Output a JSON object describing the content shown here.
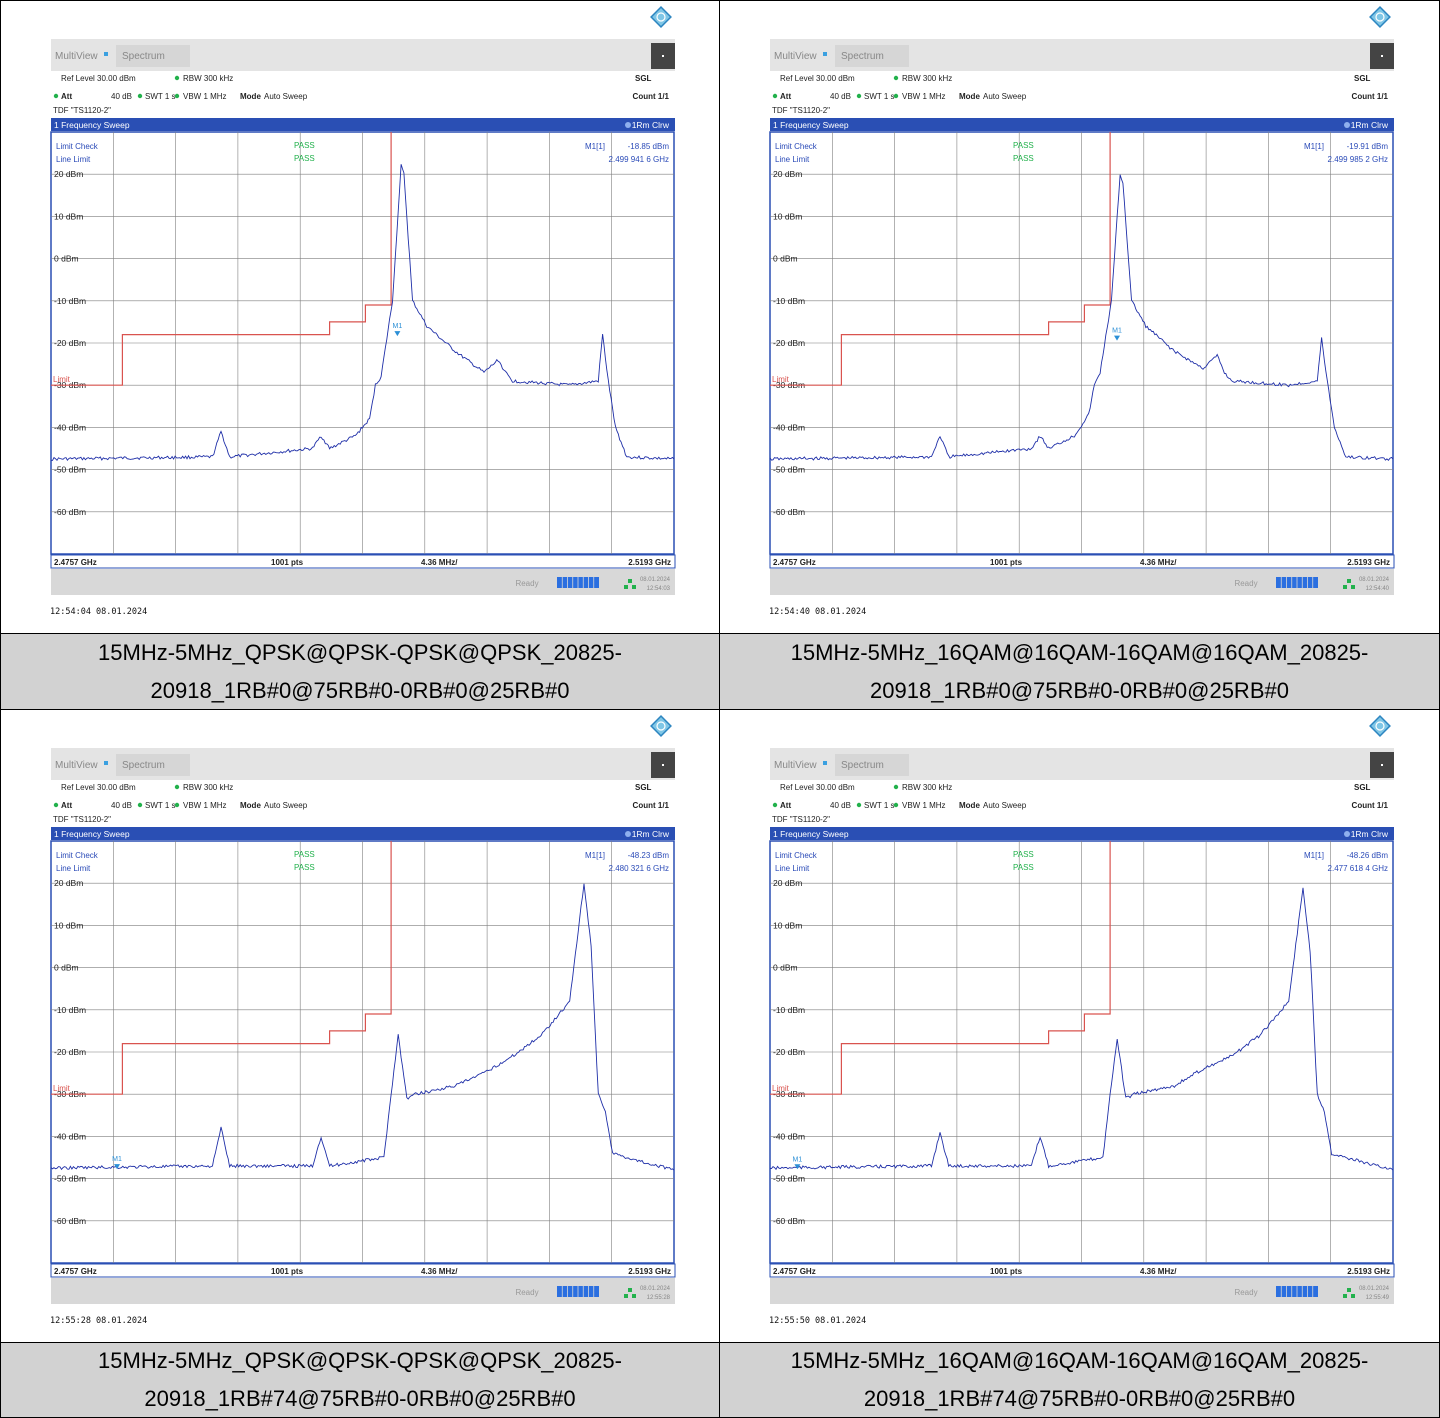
{
  "panels": [
    {
      "tab_multiview": "MultiView",
      "tab_spectrum": "Spectrum",
      "ref_level": "Ref Level 30.00 dBm",
      "att": "Att",
      "att_val": "40 dB",
      "swt": "SWT 1 s",
      "rbw": "RBW 300 kHz",
      "vbw": "VBW 1 MHz",
      "mode": "Mode",
      "mode_val": "Auto Sweep",
      "sgl": "SGL",
      "count": "Count 1/1",
      "tdf": "TDF \"TS1120-2\"",
      "window_title": "1 Frequency Sweep",
      "trace_label": "1Rm Clrw",
      "limit_check": "Limit Check",
      "line_limit": "Line Limit",
      "pass1": "PASS",
      "pass2": "PASS",
      "marker_label": "M1[1]",
      "marker_level": "-18.85 dBm",
      "marker_freq": "2.499 941 6 GHz",
      "marker_tag": "M1",
      "limit_tag": "Limit",
      "start_freq": "2.4757 GHz",
      "points": "1001 pts",
      "span_div": "4.36 MHz/",
      "stop_freq": "2.5193 GHz",
      "status_ready": "Ready",
      "status_date": "08.01.2024",
      "status_time": "12:54:03",
      "timestamp": "12:54:04  08.01.2024",
      "caption": "15MHz-5MHz_QPSK@QPSK-QPSK@QPSK_20825-20918_1RB#0@75RB#0-0RB#0@25RB#0"
    },
    {
      "tab_multiview": "MultiView",
      "tab_spectrum": "Spectrum",
      "ref_level": "Ref Level 30.00 dBm",
      "att": "Att",
      "att_val": "40 dB",
      "swt": "SWT 1 s",
      "rbw": "RBW 300 kHz",
      "vbw": "VBW 1 MHz",
      "mode": "Mode",
      "mode_val": "Auto Sweep",
      "sgl": "SGL",
      "count": "Count 1/1",
      "tdf": "TDF \"TS1120-2\"",
      "window_title": "1 Frequency Sweep",
      "trace_label": "1Rm Clrw",
      "limit_check": "Limit Check",
      "line_limit": "Line Limit",
      "pass1": "PASS",
      "pass2": "PASS",
      "marker_label": "M1[1]",
      "marker_level": "-19.91 dBm",
      "marker_freq": "2.499 985 2 GHz",
      "marker_tag": "M1",
      "limit_tag": "Limit",
      "start_freq": "2.4757 GHz",
      "points": "1001 pts",
      "span_div": "4.36 MHz/",
      "stop_freq": "2.5193 GHz",
      "status_ready": "Ready",
      "status_date": "08.01.2024",
      "status_time": "12:54:40",
      "timestamp": "12:54:40  08.01.2024",
      "caption": "15MHz-5MHz_16QAM@16QAM-16QAM@16QAM_20825-20918_1RB#0@75RB#0-0RB#0@25RB#0"
    },
    {
      "tab_multiview": "MultiView",
      "tab_spectrum": "Spectrum",
      "ref_level": "Ref Level 30.00 dBm",
      "att": "Att",
      "att_val": "40 dB",
      "swt": "SWT 1 s",
      "rbw": "RBW 300 kHz",
      "vbw": "VBW 1 MHz",
      "mode": "Mode",
      "mode_val": "Auto Sweep",
      "sgl": "SGL",
      "count": "Count 1/1",
      "tdf": "TDF \"TS1120-2\"",
      "window_title": "1 Frequency Sweep",
      "trace_label": "1Rm Clrw",
      "limit_check": "Limit Check",
      "line_limit": "Line Limit",
      "pass1": "PASS",
      "pass2": "PASS",
      "marker_label": "M1[1]",
      "marker_level": "-48.23 dBm",
      "marker_freq": "2.480 321 6 GHz",
      "marker_tag": "M1",
      "limit_tag": "Limit",
      "start_freq": "2.4757 GHz",
      "points": "1001 pts",
      "span_div": "4.36 MHz/",
      "stop_freq": "2.5193 GHz",
      "status_ready": "Ready",
      "status_date": "08.01.2024",
      "status_time": "12:55:28",
      "timestamp": "12:55:28  08.01.2024",
      "caption": "15MHz-5MHz_QPSK@QPSK-QPSK@QPSK_20825-20918_1RB#74@75RB#0-0RB#0@25RB#0"
    },
    {
      "tab_multiview": "MultiView",
      "tab_spectrum": "Spectrum",
      "ref_level": "Ref Level 30.00 dBm",
      "att": "Att",
      "att_val": "40 dB",
      "swt": "SWT 1 s",
      "rbw": "RBW 300 kHz",
      "vbw": "VBW 1 MHz",
      "mode": "Mode",
      "mode_val": "Auto Sweep",
      "sgl": "SGL",
      "count": "Count 1/1",
      "tdf": "TDF \"TS1120-2\"",
      "window_title": "1 Frequency Sweep",
      "trace_label": "1Rm Clrw",
      "limit_check": "Limit Check",
      "line_limit": "Line Limit",
      "pass1": "PASS",
      "pass2": "PASS",
      "marker_label": "M1[1]",
      "marker_level": "-48.26 dBm",
      "marker_freq": "2.477 618 4 GHz",
      "marker_tag": "M1",
      "limit_tag": "Limit",
      "start_freq": "2.4757 GHz",
      "points": "1001 pts",
      "span_div": "4.36 MHz/",
      "stop_freq": "2.5193 GHz",
      "status_ready": "Ready",
      "status_date": "08.01.2024",
      "status_time": "12:55:49",
      "timestamp": "12:55:50  08.01.2024",
      "caption": "15MHz-5MHz_16QAM@16QAM-16QAM@16QAM_20825-20918_1RB#74@75RB#0-0RB#0@25RB#0"
    }
  ],
  "colors": {
    "trace": "#1f2fa8",
    "limit": "#d9534f",
    "header_bar": "#2a4fb4",
    "pass": "#22b14c",
    "grid": "#7f7f7f"
  },
  "chart_data": [
    {
      "type": "line",
      "xlim": [
        2.4757,
        2.5193
      ],
      "ylim": [
        -70,
        30
      ],
      "y_ticks": [
        "20 dBm",
        "10 dBm",
        "0 dBm",
        "-10 dBm",
        "-20 dBm",
        "-30 dBm",
        "-40 dBm",
        "-50 dBm",
        "-60 dBm"
      ],
      "y_tick_values": [
        20,
        10,
        0,
        -10,
        -20,
        -30,
        -40,
        -50,
        -60
      ],
      "limit_line": {
        "x": [
          2.4757,
          2.4807,
          2.4807,
          2.4952,
          2.4952,
          2.4977,
          2.4977,
          2.4995,
          2.4995
        ],
        "y": [
          -30,
          -30,
          -18,
          -18,
          -15,
          -15,
          -11,
          -11,
          30
        ]
      },
      "trace_points": {
        "x": [
          2.4757,
          2.487,
          2.4876,
          2.4882,
          2.494,
          2.4946,
          2.4952,
          2.497,
          2.498,
          2.4984,
          2.4988,
          2.4996,
          2.5002,
          2.5004,
          2.501,
          2.502,
          2.504,
          2.506,
          2.507,
          2.5075,
          2.508,
          2.512,
          2.514,
          2.5143,
          2.5147,
          2.5152,
          2.516,
          2.5193
        ],
        "y": [
          -47.5,
          -47,
          -41,
          -47,
          -45,
          -42,
          -45,
          -42,
          -38,
          -30,
          -28,
          -10,
          22,
          20,
          -10,
          -16,
          -22,
          -27,
          -24,
          -27,
          -29,
          -30,
          -29,
          -18,
          -29,
          -40,
          -47,
          -47.5
        ]
      },
      "marker": {
        "x": 2.4999416,
        "y": -18.85
      }
    },
    {
      "type": "line",
      "xlim": [
        2.4757,
        2.5193
      ],
      "ylim": [
        -70,
        30
      ],
      "y_ticks": [
        "20 dBm",
        "10 dBm",
        "0 dBm",
        "-10 dBm",
        "-20 dBm",
        "-30 dBm",
        "-40 dBm",
        "-50 dBm",
        "-60 dBm"
      ],
      "y_tick_values": [
        20,
        10,
        0,
        -10,
        -20,
        -30,
        -40,
        -50,
        -60
      ],
      "limit_line": {
        "x": [
          2.4757,
          2.4807,
          2.4807,
          2.4952,
          2.4952,
          2.4977,
          2.4977,
          2.4995,
          2.4995
        ],
        "y": [
          -30,
          -30,
          -18,
          -18,
          -15,
          -15,
          -11,
          -11,
          30
        ]
      },
      "trace_points": {
        "x": [
          2.4757,
          2.487,
          2.4876,
          2.4882,
          2.494,
          2.4946,
          2.4952,
          2.497,
          2.498,
          2.4984,
          2.4988,
          2.4996,
          2.5002,
          2.5004,
          2.501,
          2.502,
          2.504,
          2.506,
          2.507,
          2.5075,
          2.508,
          2.512,
          2.514,
          2.5143,
          2.5147,
          2.5152,
          2.516,
          2.5193
        ],
        "y": [
          -47.5,
          -47,
          -42,
          -47,
          -45,
          -42,
          -45,
          -42,
          -37,
          -30,
          -27,
          -10,
          20,
          18,
          -10,
          -16,
          -22,
          -26,
          -23,
          -27,
          -29,
          -30,
          -29,
          -19,
          -29,
          -40,
          -47,
          -47.5
        ]
      },
      "marker": {
        "x": 2.4999852,
        "y": -19.91
      }
    },
    {
      "type": "line",
      "xlim": [
        2.4757,
        2.5193
      ],
      "ylim": [
        -70,
        30
      ],
      "y_ticks": [
        "20 dBm",
        "10 dBm",
        "0 dBm",
        "-10 dBm",
        "-20 dBm",
        "-30 dBm",
        "-40 dBm",
        "-50 dBm",
        "-60 dBm"
      ],
      "y_tick_values": [
        20,
        10,
        0,
        -10,
        -20,
        -30,
        -40,
        -50,
        -60
      ],
      "limit_line": {
        "x": [
          2.4757,
          2.4807,
          2.4807,
          2.4952,
          2.4952,
          2.4977,
          2.4977,
          2.4995,
          2.4995
        ],
        "y": [
          -30,
          -30,
          -18,
          -18,
          -15,
          -15,
          -11,
          -11,
          30
        ]
      },
      "trace_points": {
        "x": [
          2.4757,
          2.487,
          2.4876,
          2.4882,
          2.494,
          2.4946,
          2.4952,
          2.499,
          2.4995,
          2.5,
          2.5006,
          2.5012,
          2.504,
          2.506,
          2.508,
          2.51,
          2.512,
          2.513,
          2.5135,
          2.514,
          2.5145,
          2.515,
          2.516,
          2.5193
        ],
        "y": [
          -47.5,
          -47,
          -38,
          -47,
          -47,
          -40,
          -47,
          -45,
          -30,
          -16,
          -31,
          -30,
          -28,
          -25,
          -21,
          -16,
          -8,
          20,
          5,
          -30,
          -34,
          -44,
          -45,
          -48
        ]
      },
      "marker": {
        "x": 2.4803216,
        "y": -48.23
      }
    },
    {
      "type": "line",
      "xlim": [
        2.4757,
        2.5193
      ],
      "ylim": [
        -70,
        30
      ],
      "y_ticks": [
        "20 dBm",
        "10 dBm",
        "0 dBm",
        "-10 dBm",
        "-20 dBm",
        "-30 dBm",
        "-40 dBm",
        "-50 dBm",
        "-60 dBm"
      ],
      "y_tick_values": [
        20,
        10,
        0,
        -10,
        -20,
        -30,
        -40,
        -50,
        -60
      ],
      "limit_line": {
        "x": [
          2.4757,
          2.4807,
          2.4807,
          2.4952,
          2.4952,
          2.4977,
          2.4977,
          2.4995,
          2.4995
        ],
        "y": [
          -30,
          -30,
          -18,
          -18,
          -15,
          -15,
          -11,
          -11,
          30
        ]
      },
      "trace_points": {
        "x": [
          2.4757,
          2.487,
          2.4876,
          2.4882,
          2.494,
          2.4946,
          2.4952,
          2.499,
          2.4995,
          2.5,
          2.5006,
          2.5012,
          2.504,
          2.506,
          2.508,
          2.51,
          2.512,
          2.513,
          2.5135,
          2.514,
          2.5145,
          2.515,
          2.516,
          2.5193
        ],
        "y": [
          -47.5,
          -47,
          -39,
          -47,
          -47,
          -40,
          -47,
          -45,
          -30,
          -17,
          -31,
          -30,
          -28,
          -24,
          -21,
          -16,
          -8,
          19,
          4,
          -30,
          -34,
          -44,
          -45,
          -48
        ]
      },
      "marker": {
        "x": 2.4776184,
        "y": -48.26
      }
    }
  ]
}
